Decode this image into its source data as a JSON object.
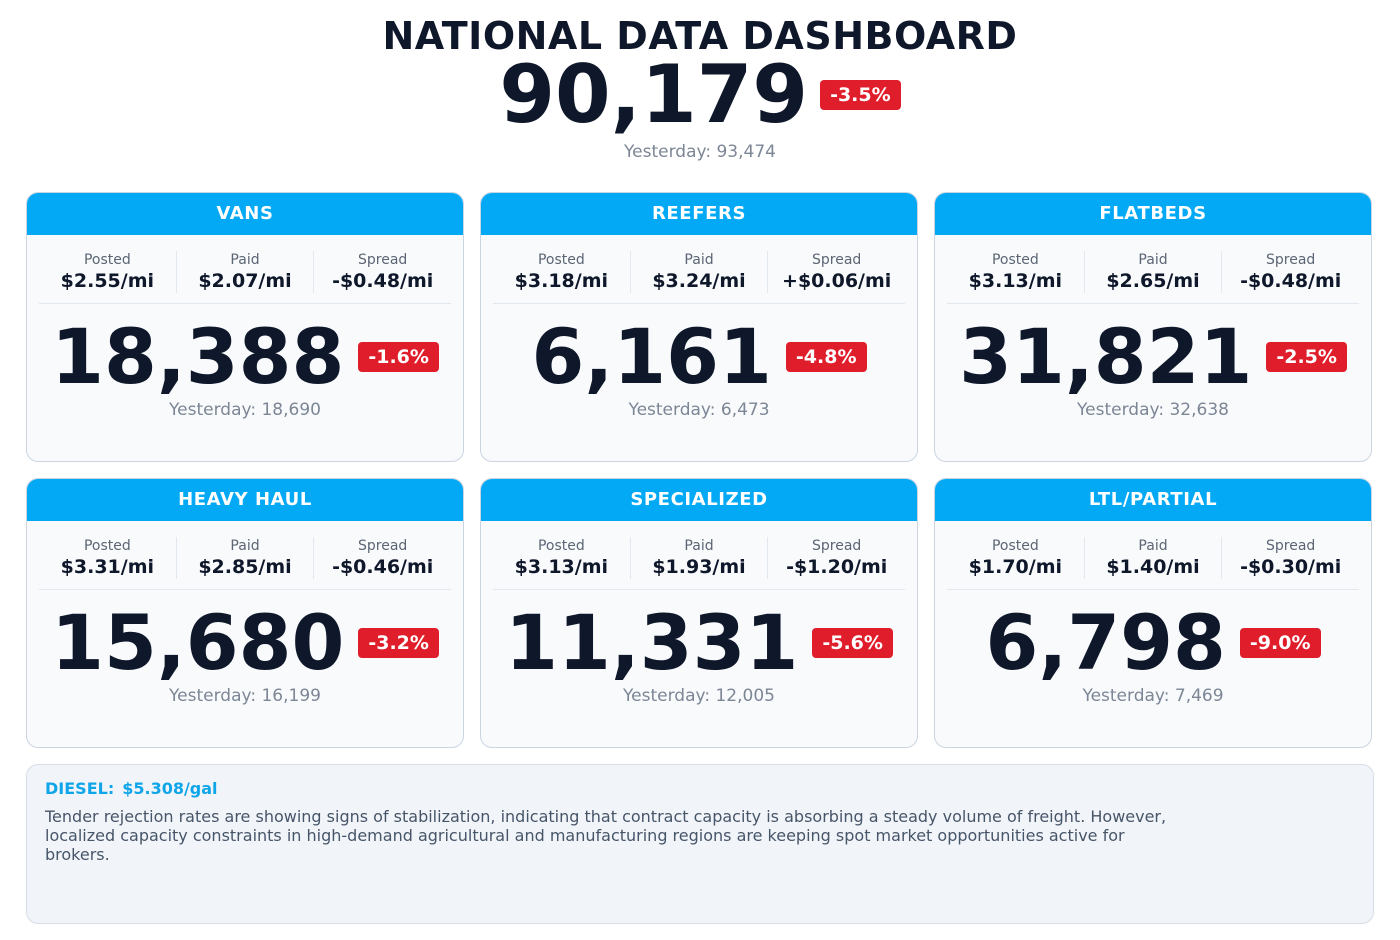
{
  "header": {
    "title": "NATIONAL DATA DASHBOARD",
    "total": "90,179",
    "change": "-3.5%",
    "yesterday": "Yesterday: 93,474"
  },
  "cards": [
    {
      "title": "VANS",
      "metrics": [
        {
          "label": "Posted",
          "value": "$2.55/mi"
        },
        {
          "label": "Paid",
          "value": "$2.07/mi"
        },
        {
          "label": "Spread",
          "value": "-$0.48/mi"
        }
      ],
      "count": "18,388",
      "change": "-1.6%",
      "yesterday": "Yesterday: 18,690"
    },
    {
      "title": "REEFERS",
      "metrics": [
        {
          "label": "Posted",
          "value": "$3.18/mi"
        },
        {
          "label": "Paid",
          "value": "$3.24/mi"
        },
        {
          "label": "Spread",
          "value": "+$0.06/mi"
        }
      ],
      "count": "6,161",
      "change": "-4.8%",
      "yesterday": "Yesterday: 6,473"
    },
    {
      "title": "FLATBEDS",
      "metrics": [
        {
          "label": "Posted",
          "value": "$3.13/mi"
        },
        {
          "label": "Paid",
          "value": "$2.65/mi"
        },
        {
          "label": "Spread",
          "value": "-$0.48/mi"
        }
      ],
      "count": "31,821",
      "change": "-2.5%",
      "yesterday": "Yesterday: 32,638"
    },
    {
      "title": "HEAVY HAUL",
      "metrics": [
        {
          "label": "Posted",
          "value": "$3.31/mi"
        },
        {
          "label": "Paid",
          "value": "$2.85/mi"
        },
        {
          "label": "Spread",
          "value": "-$0.46/mi"
        }
      ],
      "count": "15,680",
      "change": "-3.2%",
      "yesterday": "Yesterday: 16,199"
    },
    {
      "title": "SPECIALIZED",
      "metrics": [
        {
          "label": "Posted",
          "value": "$3.13/mi"
        },
        {
          "label": "Paid",
          "value": "$1.93/mi"
        },
        {
          "label": "Spread",
          "value": "-$1.20/mi"
        }
      ],
      "count": "11,331",
      "change": "-5.6%",
      "yesterday": "Yesterday: 12,005"
    },
    {
      "title": "LTL/PARTIAL",
      "metrics": [
        {
          "label": "Posted",
          "value": "$1.70/mi"
        },
        {
          "label": "Paid",
          "value": "$1.40/mi"
        },
        {
          "label": "Spread",
          "value": "-$0.30/mi"
        }
      ],
      "count": "6,798",
      "change": "-9.0%",
      "yesterday": "Yesterday: 7,469"
    }
  ],
  "footer": {
    "diesel_label": "DIESEL:",
    "diesel_value": "$5.308/gal",
    "note": "Tender rejection rates are showing signs of stabilization, indicating that contract capacity is absorbing a steady volume of freight. However, localized capacity constraints in high-demand agricultural and manufacturing regions are keeping spot market opportunities active for brokers."
  }
}
